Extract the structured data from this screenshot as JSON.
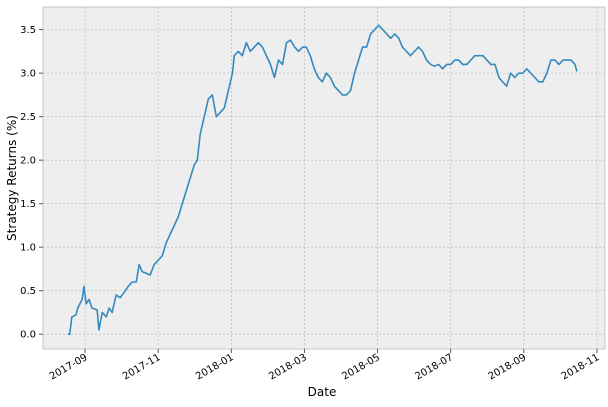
{
  "chart_data": {
    "type": "line",
    "x_label": "Date",
    "y_label": "Strategy Returns (%)",
    "grid": true,
    "xlim": [
      6.85,
      22.22
    ],
    "ylim": [
      -0.17,
      3.76
    ],
    "xticks": [
      {
        "value": 8,
        "label": "2017-09"
      },
      {
        "value": 10,
        "label": "2017-11"
      },
      {
        "value": 12,
        "label": "2018-01"
      },
      {
        "value": 14,
        "label": "2018-03"
      },
      {
        "value": 16,
        "label": "2018-05"
      },
      {
        "value": 18,
        "label": "2018-07"
      },
      {
        "value": 20,
        "label": "2018-09"
      },
      {
        "value": 22,
        "label": "2018-11"
      }
    ],
    "yticks": [
      {
        "value": 0,
        "label": "0.0"
      },
      0.5,
      {
        "value": 1,
        "label": "1.0"
      },
      1.5,
      {
        "value": 2,
        "label": "2.0"
      },
      2.5,
      {
        "value": 3,
        "label": "3.0"
      },
      3.5
    ],
    "x": [
      7.53,
      7.58,
      7.64,
      7.75,
      7.8,
      7.92,
      7.97,
      8.03,
      8.11,
      8.19,
      8.33,
      8.38,
      8.47,
      8.58,
      8.66,
      8.74,
      8.85,
      8.96,
      9.07,
      9.18,
      9.29,
      9.4,
      9.48,
      9.56,
      9.67,
      9.78,
      9.89,
      10.0,
      10.11,
      10.22,
      10.33,
      10.44,
      10.55,
      10.66,
      10.77,
      10.88,
      10.99,
      11.07,
      11.15,
      11.26,
      11.37,
      11.48,
      11.59,
      11.7,
      11.81,
      11.92,
      12.03,
      12.08,
      12.19,
      12.3,
      12.41,
      12.52,
      12.63,
      12.74,
      12.85,
      12.96,
      13.07,
      13.18,
      13.29,
      13.4,
      13.51,
      13.62,
      13.73,
      13.84,
      13.95,
      14.05,
      14.16,
      14.27,
      14.38,
      14.49,
      14.6,
      14.71,
      14.82,
      14.93,
      15.04,
      15.15,
      15.26,
      15.37,
      15.48,
      15.59,
      15.7,
      15.81,
      15.92,
      16.03,
      16.14,
      16.25,
      16.36,
      16.47,
      16.58,
      16.68,
      16.79,
      16.9,
      17.01,
      17.12,
      17.23,
      17.34,
      17.45,
      17.56,
      17.67,
      17.78,
      17.89,
      18.0,
      18.11,
      18.22,
      18.33,
      18.44,
      18.55,
      18.66,
      18.77,
      18.88,
      18.99,
      19.1,
      19.21,
      19.32,
      19.42,
      19.53,
      19.64,
      19.75,
      19.86,
      19.97,
      20.08,
      20.19,
      20.3,
      20.41,
      20.52,
      20.63,
      20.74,
      20.85,
      20.96,
      21.07,
      21.18,
      21.29,
      21.4,
      21.45
    ],
    "series": [
      {
        "name": "Strategy Returns",
        "color": "#348abd",
        "values": [
          0.0,
          0.0,
          0.2,
          0.22,
          0.3,
          0.4,
          0.55,
          0.35,
          0.4,
          0.3,
          0.28,
          0.05,
          0.25,
          0.2,
          0.3,
          0.25,
          0.45,
          0.42,
          0.48,
          0.55,
          0.6,
          0.6,
          0.8,
          0.72,
          0.7,
          0.68,
          0.8,
          0.85,
          0.9,
          1.05,
          1.15,
          1.25,
          1.35,
          1.5,
          1.65,
          1.8,
          1.95,
          2.0,
          2.3,
          2.5,
          2.7,
          2.75,
          2.5,
          2.55,
          2.6,
          2.8,
          3.0,
          3.2,
          3.25,
          3.2,
          3.35,
          3.25,
          3.3,
          3.35,
          3.3,
          3.2,
          3.1,
          2.95,
          3.15,
          3.1,
          3.35,
          3.38,
          3.3,
          3.25,
          3.3,
          3.3,
          3.2,
          3.05,
          2.95,
          2.9,
          3.0,
          2.95,
          2.85,
          2.8,
          2.75,
          2.75,
          2.8,
          3.0,
          3.15,
          3.3,
          3.3,
          3.45,
          3.5,
          3.55,
          3.5,
          3.45,
          3.4,
          3.45,
          3.4,
          3.3,
          3.25,
          3.2,
          3.25,
          3.3,
          3.25,
          3.15,
          3.1,
          3.08,
          3.1,
          3.05,
          3.1,
          3.1,
          3.15,
          3.15,
          3.1,
          3.1,
          3.15,
          3.2,
          3.2,
          3.2,
          3.15,
          3.1,
          3.1,
          2.95,
          2.9,
          2.85,
          3.0,
          2.95,
          3.0,
          3.0,
          3.05,
          3.0,
          2.95,
          2.9,
          2.9,
          3.0,
          3.15,
          3.15,
          3.1,
          3.15,
          3.15,
          3.15,
          3.1,
          3.02
        ]
      }
    ]
  }
}
